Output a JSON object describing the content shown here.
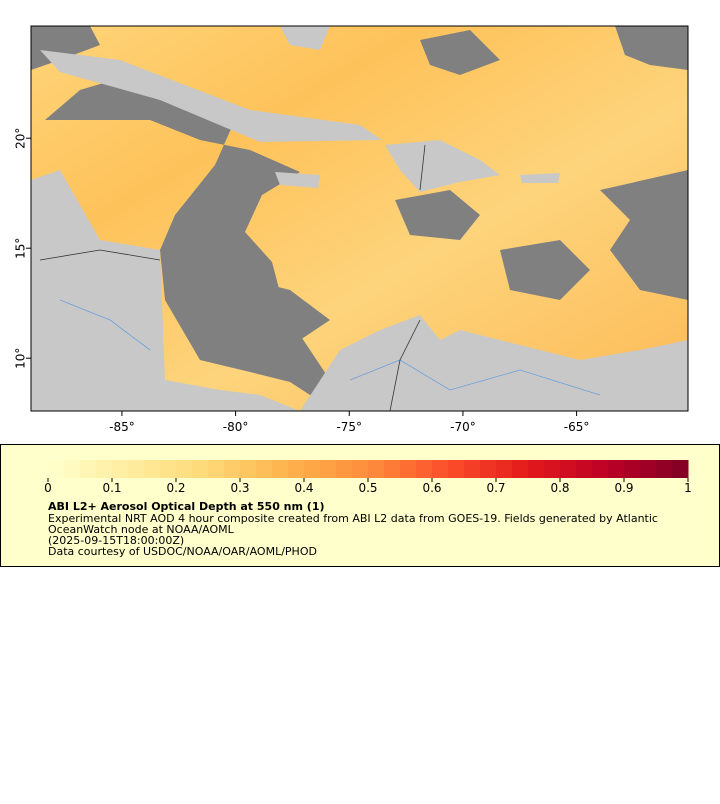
{
  "map": {
    "xlim": [
      -89,
      -60.1
    ],
    "ylim": [
      7.6,
      25.1
    ],
    "xticks": [
      {
        "value": -85,
        "label": "-85°"
      },
      {
        "value": -80,
        "label": "-80°"
      },
      {
        "value": -75,
        "label": "-75°"
      },
      {
        "value": -70,
        "label": "-70°"
      },
      {
        "value": -65,
        "label": "-65°"
      }
    ],
    "yticks": [
      {
        "value": 10,
        "label": "10°"
      },
      {
        "value": 15,
        "label": "15°"
      },
      {
        "value": 20,
        "label": "20°"
      }
    ],
    "colorbar": {
      "lim": [
        0,
        1
      ],
      "ticks": [
        0,
        0.1,
        0.2,
        0.3,
        0.4,
        0.5,
        0.6,
        0.7,
        0.8,
        0.9,
        1
      ],
      "colors": [
        "#ffffcc",
        "#ffeda0",
        "#fed976",
        "#feb24c",
        "#fd8d3c",
        "#fc4e2a",
        "#e31a1c",
        "#bd0026",
        "#800026"
      ]
    }
  },
  "legend": {
    "title": "ABI L2+ Aerosol Optical Depth at 550 nm (1)",
    "lines": [
      "Experimental NRT AOD 4 hour composite created from ABI L2 data from GOES-19. Fields generated by Atlantic",
      "OceanWatch node at NOAA/AOML",
      "(2025-09-15T18:00:00Z)",
      "Data courtesy of USDOC/NOAA/OAR/AOML/PHOD"
    ]
  }
}
